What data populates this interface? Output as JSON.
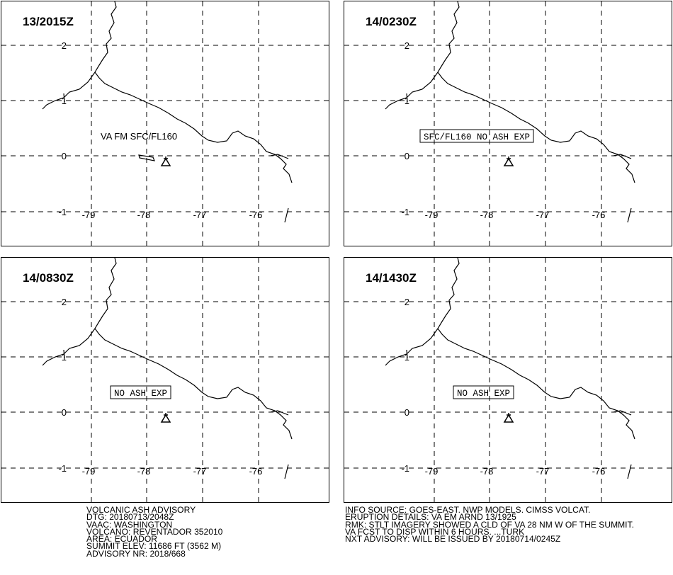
{
  "panels": [
    {
      "time": "13/2015Z",
      "annotation": "VA FM SFC/FL160",
      "boxed": false
    },
    {
      "time": "14/0230Z",
      "annotation": "SFC/FL160 NO ASH EXP",
      "boxed": true
    },
    {
      "time": "14/0830Z",
      "annotation": "NO ASH EXP",
      "boxed": true
    },
    {
      "time": "14/1430Z",
      "annotation": "NO ASH EXP",
      "boxed": true
    }
  ],
  "lat_labels": [
    "2",
    "1",
    "0",
    "-1"
  ],
  "lon_labels": [
    "-79",
    "-78",
    "-77",
    "-76"
  ],
  "footer_left": [
    "VOLCANIC ASH ADVISORY",
    "DTG: 20180713/2048Z",
    "VAAC: WASHINGTON",
    "VOLCANO: REVENTADOR 352010",
    "AREA: ECUADOR",
    "SUMMIT ELEV: 11686 FT (3562 M)",
    "ADVISORY NR: 2018/668"
  ],
  "footer_right": [
    "INFO SOURCE: GOES-EAST. NWP MODELS. CIMSS VOLCAT.",
    "ERUPTION DETAILS: VA EM ARND 13/1925",
    "RMK: STLT IMAGERY SHOWED A CLD OF VA 28 NM W OF THE SUMMIT.",
    "VA FCST TO DISP WITHIN 6 HOURS. ...TURK",
    "NXT ADVISORY: WILL BE ISSUED BY 20180714/0245Z"
  ]
}
